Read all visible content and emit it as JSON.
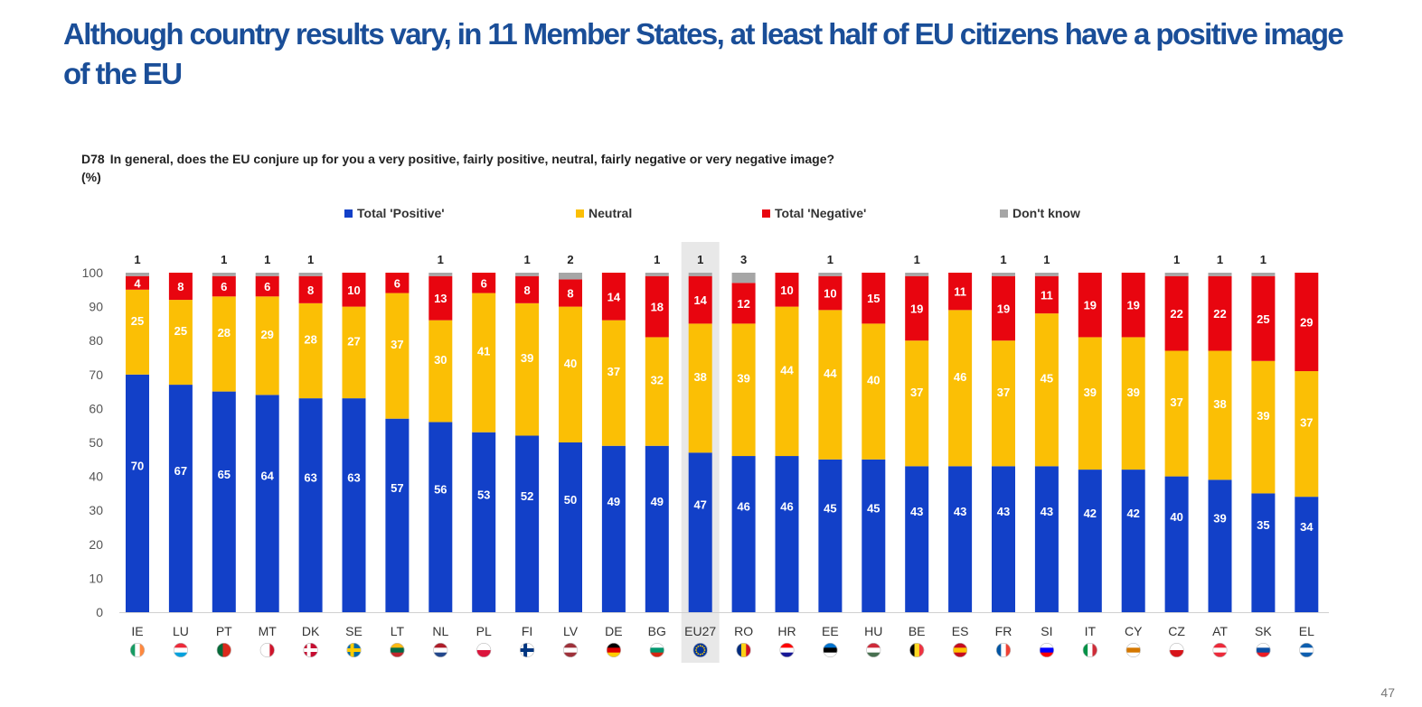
{
  "headline": "Although country results vary, in 11 Member States, at least half of EU citizens have a positive image of the EU",
  "question": {
    "code": "D78",
    "text": "In general, does the EU conjure up for you a very positive, fairly positive, neutral, fairly negative or very negative image?",
    "unit": "(%)"
  },
  "page_number": "47",
  "colors": {
    "positive": "#1240c8",
    "neutral": "#fbbf05",
    "negative": "#e8050f",
    "dont_know": "#a6a6a6",
    "headline": "#1a4e98",
    "highlight": "#e8e8e8"
  },
  "chart_data": {
    "type": "bar",
    "stacked": true,
    "ylim": [
      0,
      100
    ],
    "yticks": [
      0,
      10,
      20,
      30,
      40,
      50,
      60,
      70,
      80,
      90,
      100
    ],
    "legend_position": "top",
    "highlight_category": "EU27",
    "categories": [
      "IE",
      "LU",
      "PT",
      "MT",
      "DK",
      "SE",
      "LT",
      "NL",
      "PL",
      "FI",
      "LV",
      "DE",
      "BG",
      "EU27",
      "RO",
      "HR",
      "EE",
      "HU",
      "BE",
      "ES",
      "FR",
      "SI",
      "IT",
      "CY",
      "CZ",
      "AT",
      "SK",
      "EL"
    ],
    "series": [
      {
        "name": "Total 'Positive'",
        "color_key": "positive",
        "values": [
          70,
          67,
          65,
          64,
          63,
          63,
          57,
          56,
          53,
          52,
          50,
          49,
          49,
          47,
          46,
          46,
          45,
          45,
          43,
          43,
          43,
          43,
          42,
          42,
          40,
          39,
          35,
          34
        ]
      },
      {
        "name": "Neutral",
        "color_key": "neutral",
        "values": [
          25,
          25,
          28,
          29,
          28,
          27,
          37,
          30,
          41,
          39,
          40,
          37,
          32,
          38,
          39,
          44,
          44,
          40,
          37,
          46,
          37,
          45,
          39,
          39,
          37,
          38,
          39,
          37
        ]
      },
      {
        "name": "Total 'Negative'",
        "color_key": "negative",
        "values": [
          4,
          8,
          6,
          6,
          8,
          10,
          6,
          13,
          6,
          8,
          8,
          14,
          18,
          14,
          12,
          10,
          10,
          15,
          19,
          11,
          19,
          11,
          19,
          19,
          22,
          22,
          25,
          29
        ]
      },
      {
        "name": "Don't know",
        "color_key": "dont_know",
        "values": [
          1,
          0,
          1,
          1,
          1,
          0,
          0,
          1,
          0,
          1,
          2,
          0,
          1,
          1,
          3,
          0,
          1,
          0,
          1,
          0,
          1,
          1,
          0,
          0,
          1,
          1,
          1,
          0
        ]
      }
    ]
  }
}
